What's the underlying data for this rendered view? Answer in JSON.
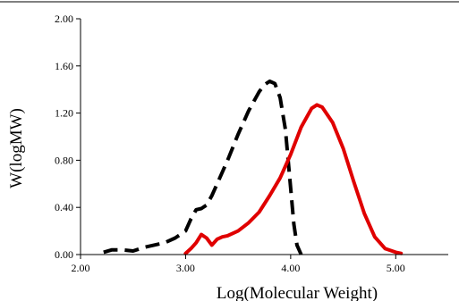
{
  "chart_data": {
    "type": "line",
    "title": "",
    "xlabel": "Log(Molecular Weight)",
    "ylabel": "W(logMW)",
    "xlim": [
      2.0,
      5.5
    ],
    "ylim": [
      0.0,
      2.0
    ],
    "x_ticks": [
      2.0,
      3.0,
      4.0,
      5.0
    ],
    "x_tick_labels": [
      "2.00",
      "3.00",
      "4.00",
      "5.00"
    ],
    "y_ticks": [
      0.0,
      0.4,
      0.8,
      1.2,
      1.6,
      2.0
    ],
    "y_tick_labels": [
      "0.00",
      "0.40",
      "0.80",
      "1.20",
      "1.60",
      "2.00"
    ],
    "grid": false,
    "legend": "none",
    "series": [
      {
        "color": "#000000",
        "style": "dashed",
        "x": [
          2.22,
          2.3,
          2.4,
          2.5,
          2.6,
          2.7,
          2.8,
          2.9,
          3.0,
          3.05,
          3.1,
          3.15,
          3.2,
          3.25,
          3.3,
          3.4,
          3.5,
          3.6,
          3.7,
          3.75,
          3.8,
          3.85,
          3.9,
          3.95,
          4.0,
          4.03,
          4.06,
          4.1
        ],
        "y": [
          0.02,
          0.04,
          0.04,
          0.03,
          0.06,
          0.08,
          0.1,
          0.14,
          0.2,
          0.3,
          0.38,
          0.39,
          0.42,
          0.5,
          0.6,
          0.8,
          1.02,
          1.22,
          1.38,
          1.44,
          1.47,
          1.45,
          1.33,
          1.06,
          0.56,
          0.26,
          0.08,
          0.0
        ]
      },
      {
        "color": "#e00000",
        "style": "solid",
        "x": [
          3.0,
          3.05,
          3.1,
          3.15,
          3.2,
          3.25,
          3.3,
          3.35,
          3.4,
          3.5,
          3.6,
          3.7,
          3.8,
          3.9,
          4.0,
          4.1,
          4.2,
          4.25,
          4.3,
          4.4,
          4.5,
          4.6,
          4.7,
          4.8,
          4.9,
          5.0,
          5.05
        ],
        "y": [
          0.01,
          0.05,
          0.1,
          0.17,
          0.14,
          0.08,
          0.13,
          0.15,
          0.16,
          0.2,
          0.27,
          0.36,
          0.5,
          0.65,
          0.85,
          1.08,
          1.24,
          1.27,
          1.25,
          1.12,
          0.9,
          0.62,
          0.35,
          0.15,
          0.05,
          0.02,
          0.01
        ]
      }
    ]
  }
}
